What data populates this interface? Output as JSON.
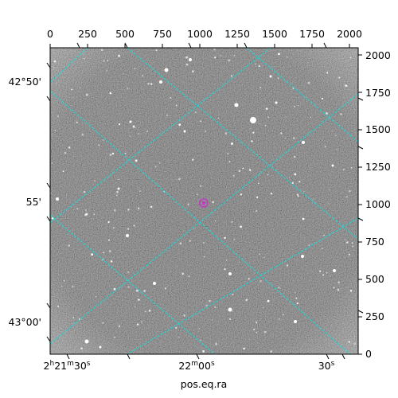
{
  "figure": {
    "xlabel": "pos.eq.ra",
    "pixel_x_ticks": [
      "0",
      "250",
      "500",
      "750",
      "1000",
      "1250",
      "1500",
      "1750",
      "2000"
    ],
    "pixel_y_ticks": [
      "0",
      "250",
      "500",
      "750",
      "1000",
      "1250",
      "1500",
      "1750",
      "2000"
    ],
    "ra_ticks": [
      {
        "text": "2",
        "sup1": "h",
        "mid": "21",
        "sup2": "m",
        "tail": "30",
        "sup3": "s"
      },
      {
        "text": "22",
        "sup1": "m",
        "mid": "00",
        "sup2": "s",
        "tail": "",
        "sup3": ""
      },
      {
        "text": "30",
        "sup1": "s",
        "mid": "",
        "sup2": "",
        "tail": "",
        "sup3": ""
      }
    ],
    "dec_ticks": [
      "42°50'",
      "55'",
      "43°00'"
    ],
    "grid_color": "#00e5e5",
    "marker_color": "#cc33cc",
    "image_description_colors": {
      "sky_background": "#6a6a6a",
      "stars": "#ffffff"
    }
  }
}
